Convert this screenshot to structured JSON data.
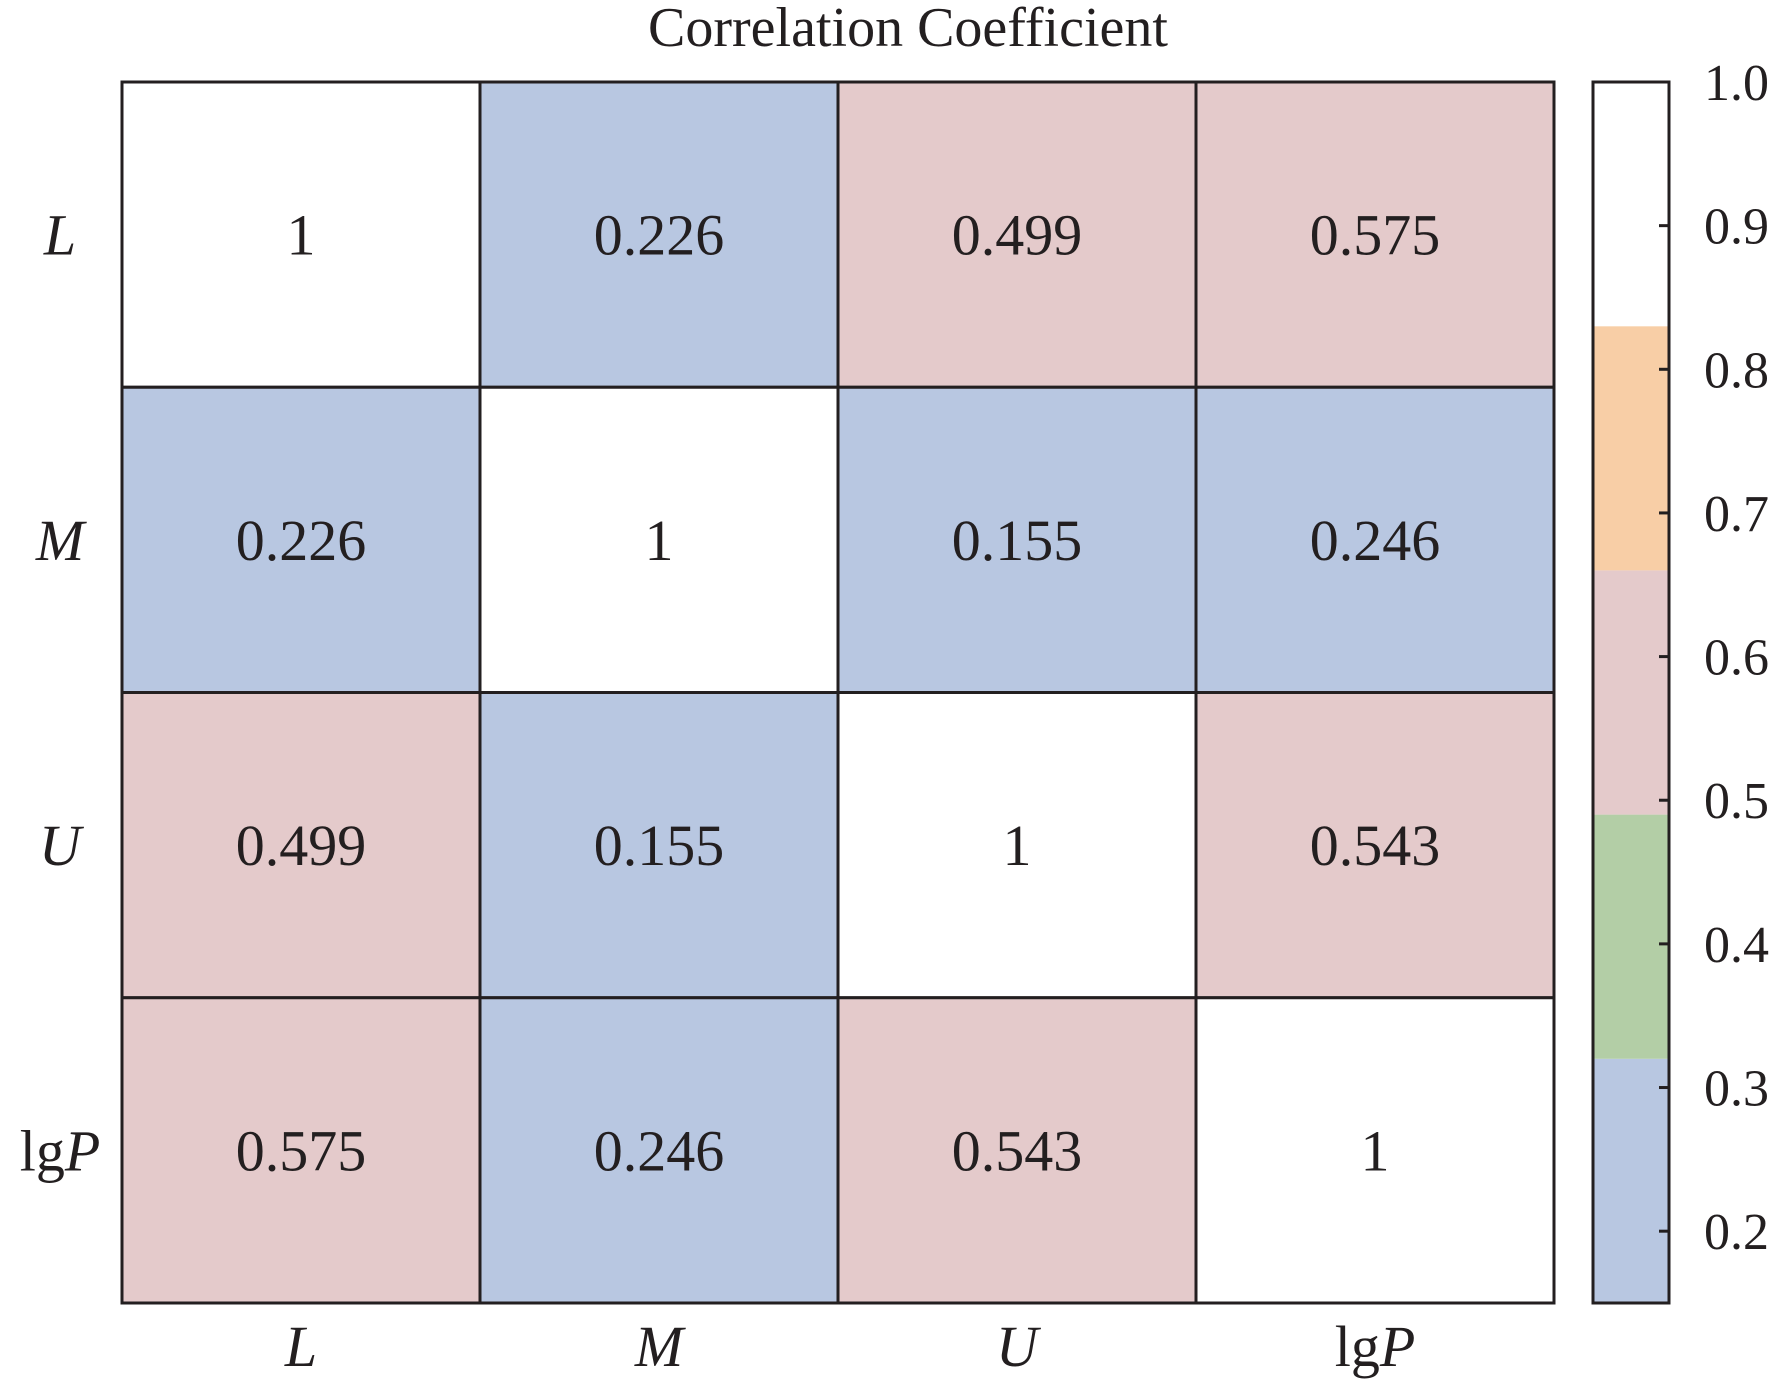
{
  "chart_data": {
    "type": "heatmap",
    "title": "Correlation Coefficient",
    "rows": [
      {
        "pre": "",
        "var": "L"
      },
      {
        "pre": "",
        "var": "M"
      },
      {
        "pre": "",
        "var": "U"
      },
      {
        "pre": "lg",
        "var": "P"
      }
    ],
    "cols": [
      {
        "pre": "",
        "var": "L"
      },
      {
        "pre": "",
        "var": "M"
      },
      {
        "pre": "",
        "var": "U"
      },
      {
        "pre": "lg",
        "var": "P"
      }
    ],
    "values": [
      [
        "1",
        "0.226",
        "0.499",
        "0.575"
      ],
      [
        "0.226",
        "1",
        "0.155",
        "0.246"
      ],
      [
        "0.499",
        "0.155",
        "1",
        "0.543"
      ],
      [
        "0.575",
        "0.246",
        "0.543",
        "1"
      ]
    ],
    "colorbar": {
      "range": [
        0.15,
        1.0
      ],
      "ticks": [
        "1.0",
        "0.9",
        "0.8",
        "0.7",
        "0.6",
        "0.5",
        "0.4",
        "0.3",
        "0.2"
      ],
      "bands": [
        {
          "from": 0.15,
          "to": 0.32,
          "color": "#b8c7e1"
        },
        {
          "from": 0.32,
          "to": 0.49,
          "color": "#b3cea6"
        },
        {
          "from": 0.49,
          "to": 0.66,
          "color": "#e4cacb"
        },
        {
          "from": 0.66,
          "to": 0.83,
          "color": "#f8cea6"
        },
        {
          "from": 0.83,
          "to": 1.0,
          "color": "#ffffff"
        }
      ]
    }
  }
}
